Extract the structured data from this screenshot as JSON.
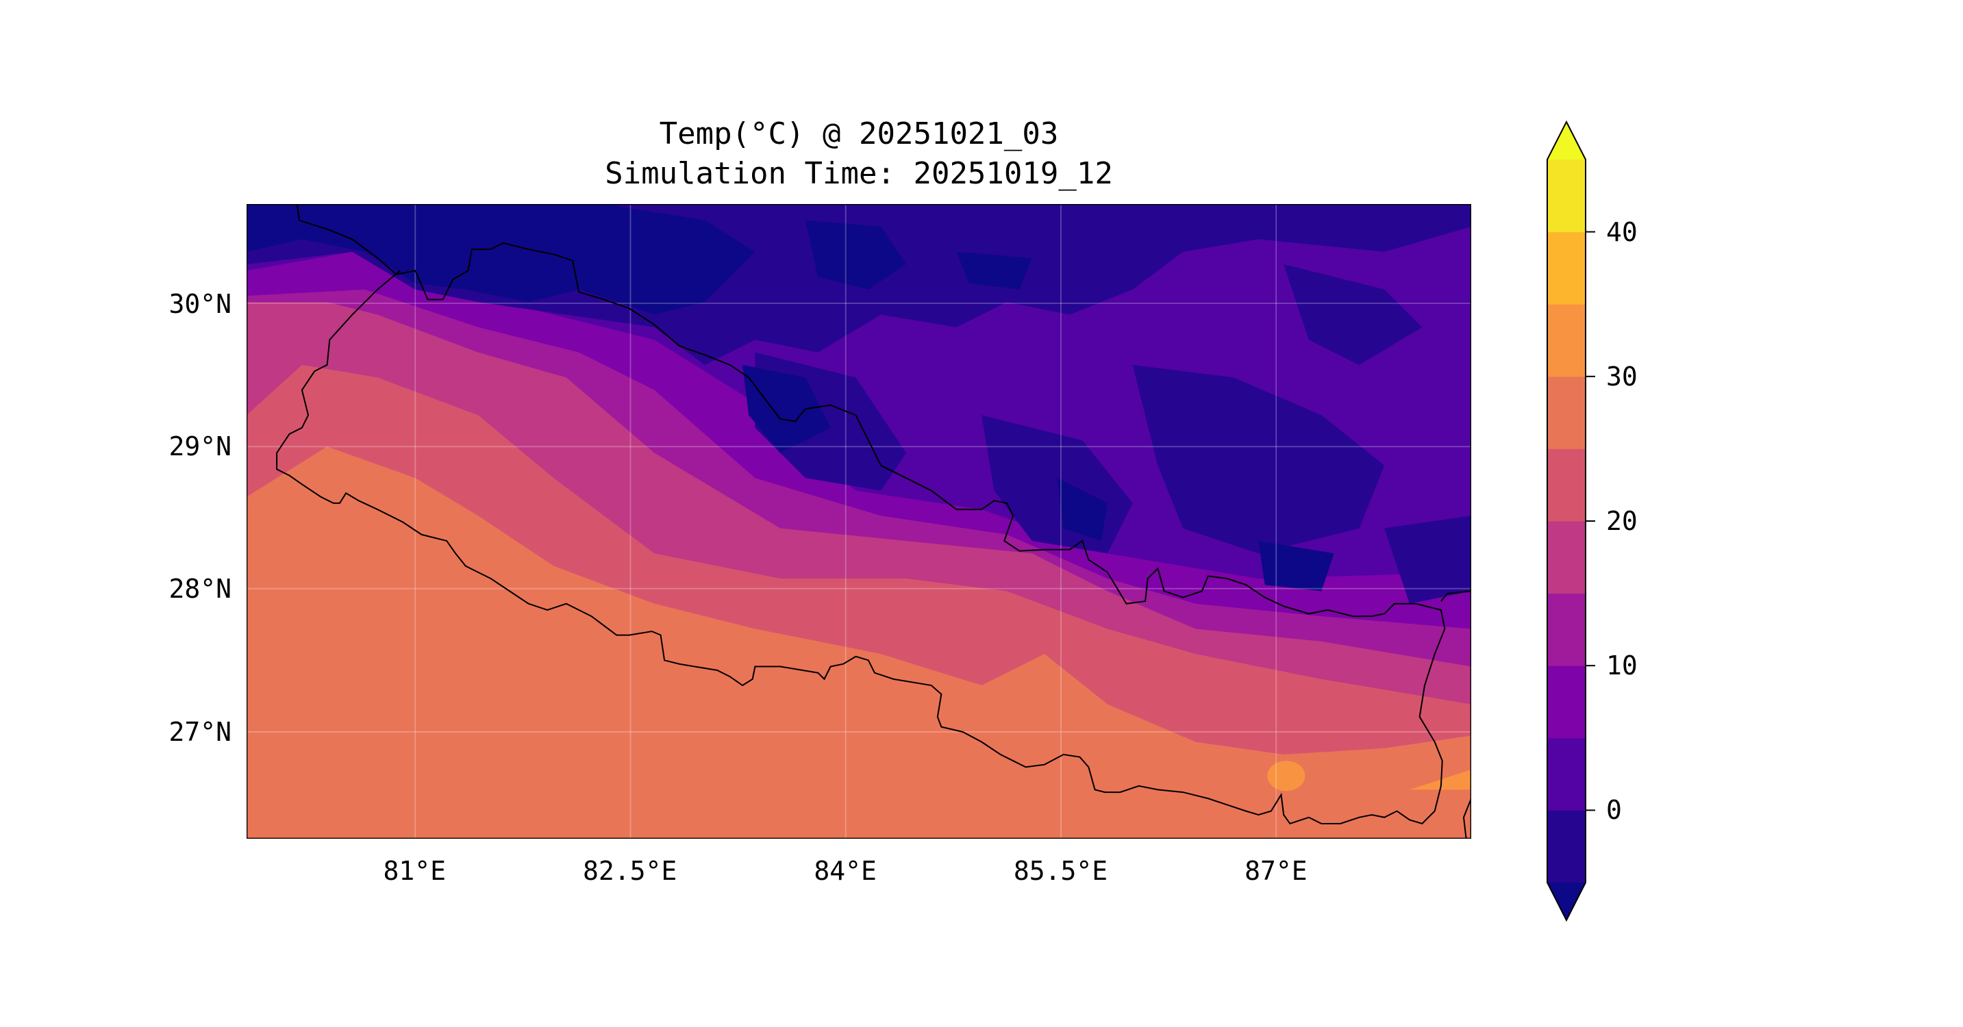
{
  "chart_data": {
    "type": "heatmap",
    "subtype": "filled-contour-map",
    "title": "Temp(°C) @ 20251021_03",
    "subtitle": "Simulation Time: 20251019_12",
    "xlabel": "",
    "ylabel": "",
    "xlim": [
      79.83,
      88.36
    ],
    "ylim": [
      26.25,
      30.7
    ],
    "x_ticks": [
      81,
      82.5,
      84,
      85.5,
      87
    ],
    "x_tick_labels": [
      "81°E",
      "82.5°E",
      "84°E",
      "85.5°E",
      "87°E"
    ],
    "y_ticks": [
      30,
      29,
      28,
      27
    ],
    "y_tick_labels": [
      "30°N",
      "29°N",
      "28°N",
      "27°N"
    ],
    "grid": true,
    "colorbar": {
      "levels": [
        -5,
        0,
        5,
        10,
        15,
        20,
        25,
        30,
        35,
        40,
        45
      ],
      "colors": [
        "#260591",
        "#5302a3",
        "#7e03a8",
        "#a01a9c",
        "#bf3984",
        "#d6556d",
        "#e97557",
        "#f89441",
        "#fdb52e",
        "#f5e425"
      ],
      "under_color": "#0d0887",
      "over_color": "#f0f921",
      "extend": "both",
      "ticks": [
        0,
        10,
        20,
        30,
        40
      ],
      "tick_labels": [
        "0",
        "10",
        "20",
        "30",
        "40"
      ],
      "placement": "right"
    },
    "overlay": "country boundary (Nepal)",
    "pattern": "warm 25-30°C in southern lowlands, cooling northward to -5-5°C over the Himalaya/Tibet"
  }
}
